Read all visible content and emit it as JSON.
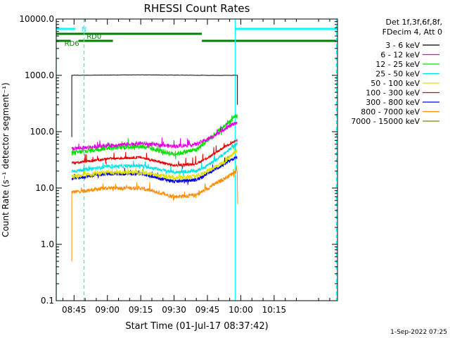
{
  "chart_data": {
    "type": "line",
    "title": "RHESSI Count Rates",
    "xlabel": "Start Time (01-Jul-17 08:37:42)",
    "ylabel": "Count Rate (s⁻¹ detector segment⁻¹)",
    "yscale": "log",
    "ylim": [
      0.1,
      10000
    ],
    "xlim_minutes": [
      -8.0,
      118.5
    ],
    "y_tick_labels": [
      "0.1",
      "1.0",
      "10.0",
      "100.0",
      "1000.0",
      "10000.0"
    ],
    "x_tick_labels": [
      "08:45",
      "09:00",
      "09:15",
      "09:30",
      "09:45",
      "10:00",
      "10:15"
    ],
    "x_tick_minutes": [
      0,
      15,
      30,
      45,
      60,
      75,
      90
    ],
    "legend_header": [
      "Det 1f,3f,6f,8f,",
      "FDecim 4, Att 0"
    ],
    "legend_placement": "right",
    "series": [
      {
        "name": "3 - 6 keV",
        "color": "#000000",
        "time": [
          -1,
          0,
          30,
          60,
          73,
          73.5
        ],
        "values": [
          1000,
          1000,
          1020,
          1000,
          1000,
          300
        ]
      },
      {
        "name": "6 - 12 keV",
        "color": "#e100e1",
        "time": [
          0,
          15,
          30,
          45,
          55,
          62,
          68,
          73
        ],
        "values": [
          50,
          57,
          62,
          55,
          60,
          80,
          115,
          145
        ]
      },
      {
        "name": "12 - 25 keV",
        "color": "#00e100",
        "time": [
          0,
          15,
          30,
          45,
          55,
          62,
          68,
          73
        ],
        "values": [
          42,
          52,
          55,
          40,
          48,
          80,
          130,
          190
        ]
      },
      {
        "name": "25 - 50 keV",
        "color": "#00e1e1",
        "time": [
          0,
          15,
          30,
          45,
          55,
          62,
          68,
          73
        ],
        "values": [
          20,
          24,
          25,
          19,
          20,
          28,
          42,
          60
        ]
      },
      {
        "name": "50 - 100 keV",
        "color": "#e1e100",
        "time": [
          0,
          15,
          30,
          45,
          55,
          62,
          68,
          73
        ],
        "values": [
          16,
          19,
          19,
          15,
          16,
          22,
          30,
          45
        ]
      },
      {
        "name": "100 - 300 keV",
        "color": "#e10000",
        "time": [
          0,
          15,
          30,
          45,
          55,
          62,
          68,
          73
        ],
        "values": [
          28,
          33,
          35,
          25,
          27,
          38,
          55,
          70
        ]
      },
      {
        "name": "300 - 800 keV",
        "color": "#0000e1",
        "time": [
          0,
          15,
          30,
          45,
          55,
          62,
          68,
          73
        ],
        "values": [
          15,
          18,
          18,
          13,
          14,
          20,
          27,
          35
        ]
      },
      {
        "name": "800 - 7000 keV",
        "color": "#ff8c00",
        "time": [
          0,
          15,
          30,
          45,
          55,
          62,
          68,
          73
        ],
        "values": [
          8.5,
          10,
          10,
          7,
          7.5,
          11,
          15,
          20
        ]
      },
      {
        "name": "7000 - 15000 keV",
        "color": "#808000",
        "time": [],
        "values": []
      }
    ],
    "flags": [
      {
        "label": "N",
        "color": "#00ffff",
        "segments": [
          [
            -8,
            0.5
          ],
          [
            72.5,
            118.5
          ]
        ]
      },
      {
        "label": "RD0",
        "color": "#008000",
        "segments": [
          [
            -8,
            57.5
          ]
        ]
      },
      {
        "label": "RD6",
        "color": "#008000",
        "segments": [
          [
            -8,
            -1.5
          ],
          [
            2,
            17.5
          ],
          [
            57.5,
            118.5
          ]
        ]
      }
    ],
    "vertical_markers": [
      {
        "time": -8.0,
        "color": "#00ffff",
        "style": "solid"
      },
      {
        "time": 4.5,
        "color": "#00ffff",
        "style": "dashed"
      },
      {
        "time": 72.5,
        "color": "#00ffff",
        "style": "solid"
      },
      {
        "time": 118.0,
        "color": "#00ffff",
        "style": "dashed"
      }
    ],
    "grid": false
  },
  "footer_timestamp": "1-Sep-2022 07:25"
}
